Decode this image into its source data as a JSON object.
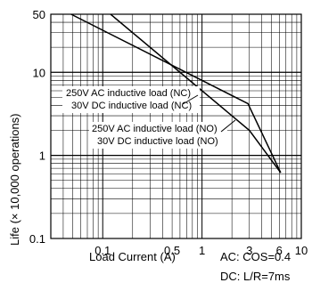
{
  "chart_data": {
    "type": "line",
    "xlabel": "Load Current (A)",
    "ylabel": "Life (× 10,000 operations)",
    "xscale": "log",
    "yscale": "log",
    "xlim": [
      0.03,
      10
    ],
    "ylim": [
      0.1,
      50
    ],
    "xticks": [
      {
        "value": 0.1,
        "label": "0.1"
      },
      {
        "value": 0.5,
        "label": "0.5"
      },
      {
        "value": 1,
        "label": "1"
      },
      {
        "value": 3,
        "label": "3"
      },
      {
        "value": 6,
        "label": "6"
      },
      {
        "value": 10,
        "label": "10"
      }
    ],
    "yticks": [
      {
        "value": 0.1,
        "label": "0.1"
      },
      {
        "value": 1,
        "label": "1"
      },
      {
        "value": 10,
        "label": "10"
      },
      {
        "value": 50,
        "label": "50"
      }
    ],
    "grid": true,
    "series": [
      {
        "id": "nc",
        "labels": [
          "250V AC inductive load (NC)",
          "30V DC inductive load (NC)"
        ],
        "x": [
          0.048,
          2.9,
          6.2
        ],
        "y": [
          50,
          4.2,
          0.62
        ]
      },
      {
        "id": "no",
        "labels": [
          "250V AC inductive load (NO)",
          "30V DC inductive load (NO)"
        ],
        "x": [
          0.12,
          3.0,
          6.2
        ],
        "y": [
          50,
          2.0,
          0.62
        ]
      }
    ],
    "annotations": [
      "AC: COS=0.4",
      "DC: L/R=7ms"
    ]
  }
}
